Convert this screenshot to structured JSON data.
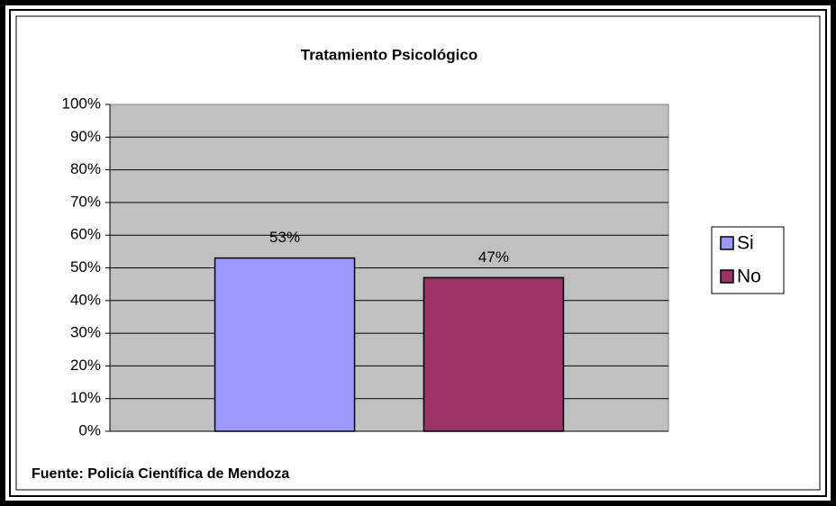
{
  "chart_data": {
    "type": "bar",
    "title": "Tratamiento Psicológico",
    "categories": [
      null
    ],
    "series": [
      {
        "name": "Si",
        "color": "#9999ff",
        "values": [
          53
        ],
        "value_labels": [
          "53%"
        ]
      },
      {
        "name": "No",
        "color": "#993366",
        "values": [
          47
        ],
        "value_labels": [
          "47%"
        ]
      }
    ],
    "ylim": [
      0,
      100
    ],
    "yticks": [
      {
        "value": 0,
        "label": "0%"
      },
      {
        "value": 10,
        "label": "10%"
      },
      {
        "value": 20,
        "label": "20%"
      },
      {
        "value": 30,
        "label": "30%"
      },
      {
        "value": 40,
        "label": "40%"
      },
      {
        "value": 50,
        "label": "50%"
      },
      {
        "value": 60,
        "label": "60%"
      },
      {
        "value": 70,
        "label": "70%"
      },
      {
        "value": 80,
        "label": "80%"
      },
      {
        "value": 90,
        "label": "90%"
      },
      {
        "value": 100,
        "label": "100%"
      }
    ],
    "grid": true,
    "legend": "right",
    "source": "Fuente: Policía Científica de Mendoza"
  }
}
